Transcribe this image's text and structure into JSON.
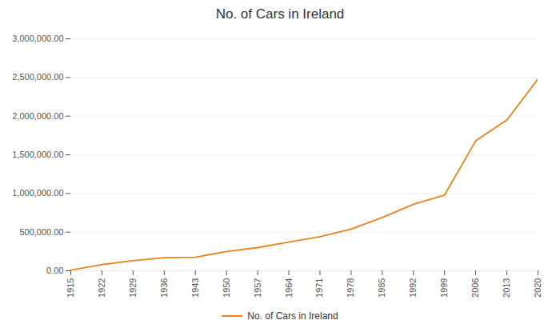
{
  "chart_data": {
    "type": "line",
    "title": "No. of Cars in Ireland",
    "x": [
      1915,
      1922,
      1929,
      1936,
      1943,
      1950,
      1957,
      1964,
      1971,
      1978,
      1985,
      1992,
      1999,
      2006,
      2013,
      2020
    ],
    "series": [
      {
        "name": "No. of Cars in Ireland",
        "color": "#E8821A",
        "values": [
          10000,
          80000,
          130000,
          170000,
          175000,
          250000,
          300000,
          370000,
          440000,
          540000,
          690000,
          860000,
          980000,
          1680000,
          1950000,
          2480000
        ]
      }
    ],
    "xlim": [
      1915,
      2020
    ],
    "xticks": [
      1915,
      1922,
      1929,
      1936,
      1943,
      1950,
      1957,
      1964,
      1971,
      1978,
      1985,
      1992,
      1999,
      2006,
      2013,
      2020
    ],
    "ylim": [
      0,
      3000000
    ],
    "yticks": [
      {
        "value": 0,
        "label": "0.00"
      },
      {
        "value": 500000,
        "label": "500,000.00"
      },
      {
        "value": 1000000,
        "label": "1,000,000.00"
      },
      {
        "value": 1500000,
        "label": "1,500,000.00"
      },
      {
        "value": 2000000,
        "label": "2,000,000.00"
      },
      {
        "value": 2500000,
        "label": "2,500,000.00"
      },
      {
        "value": 3000000,
        "label": "3,000,000.00"
      }
    ],
    "grid": true,
    "legend": "bottom"
  }
}
